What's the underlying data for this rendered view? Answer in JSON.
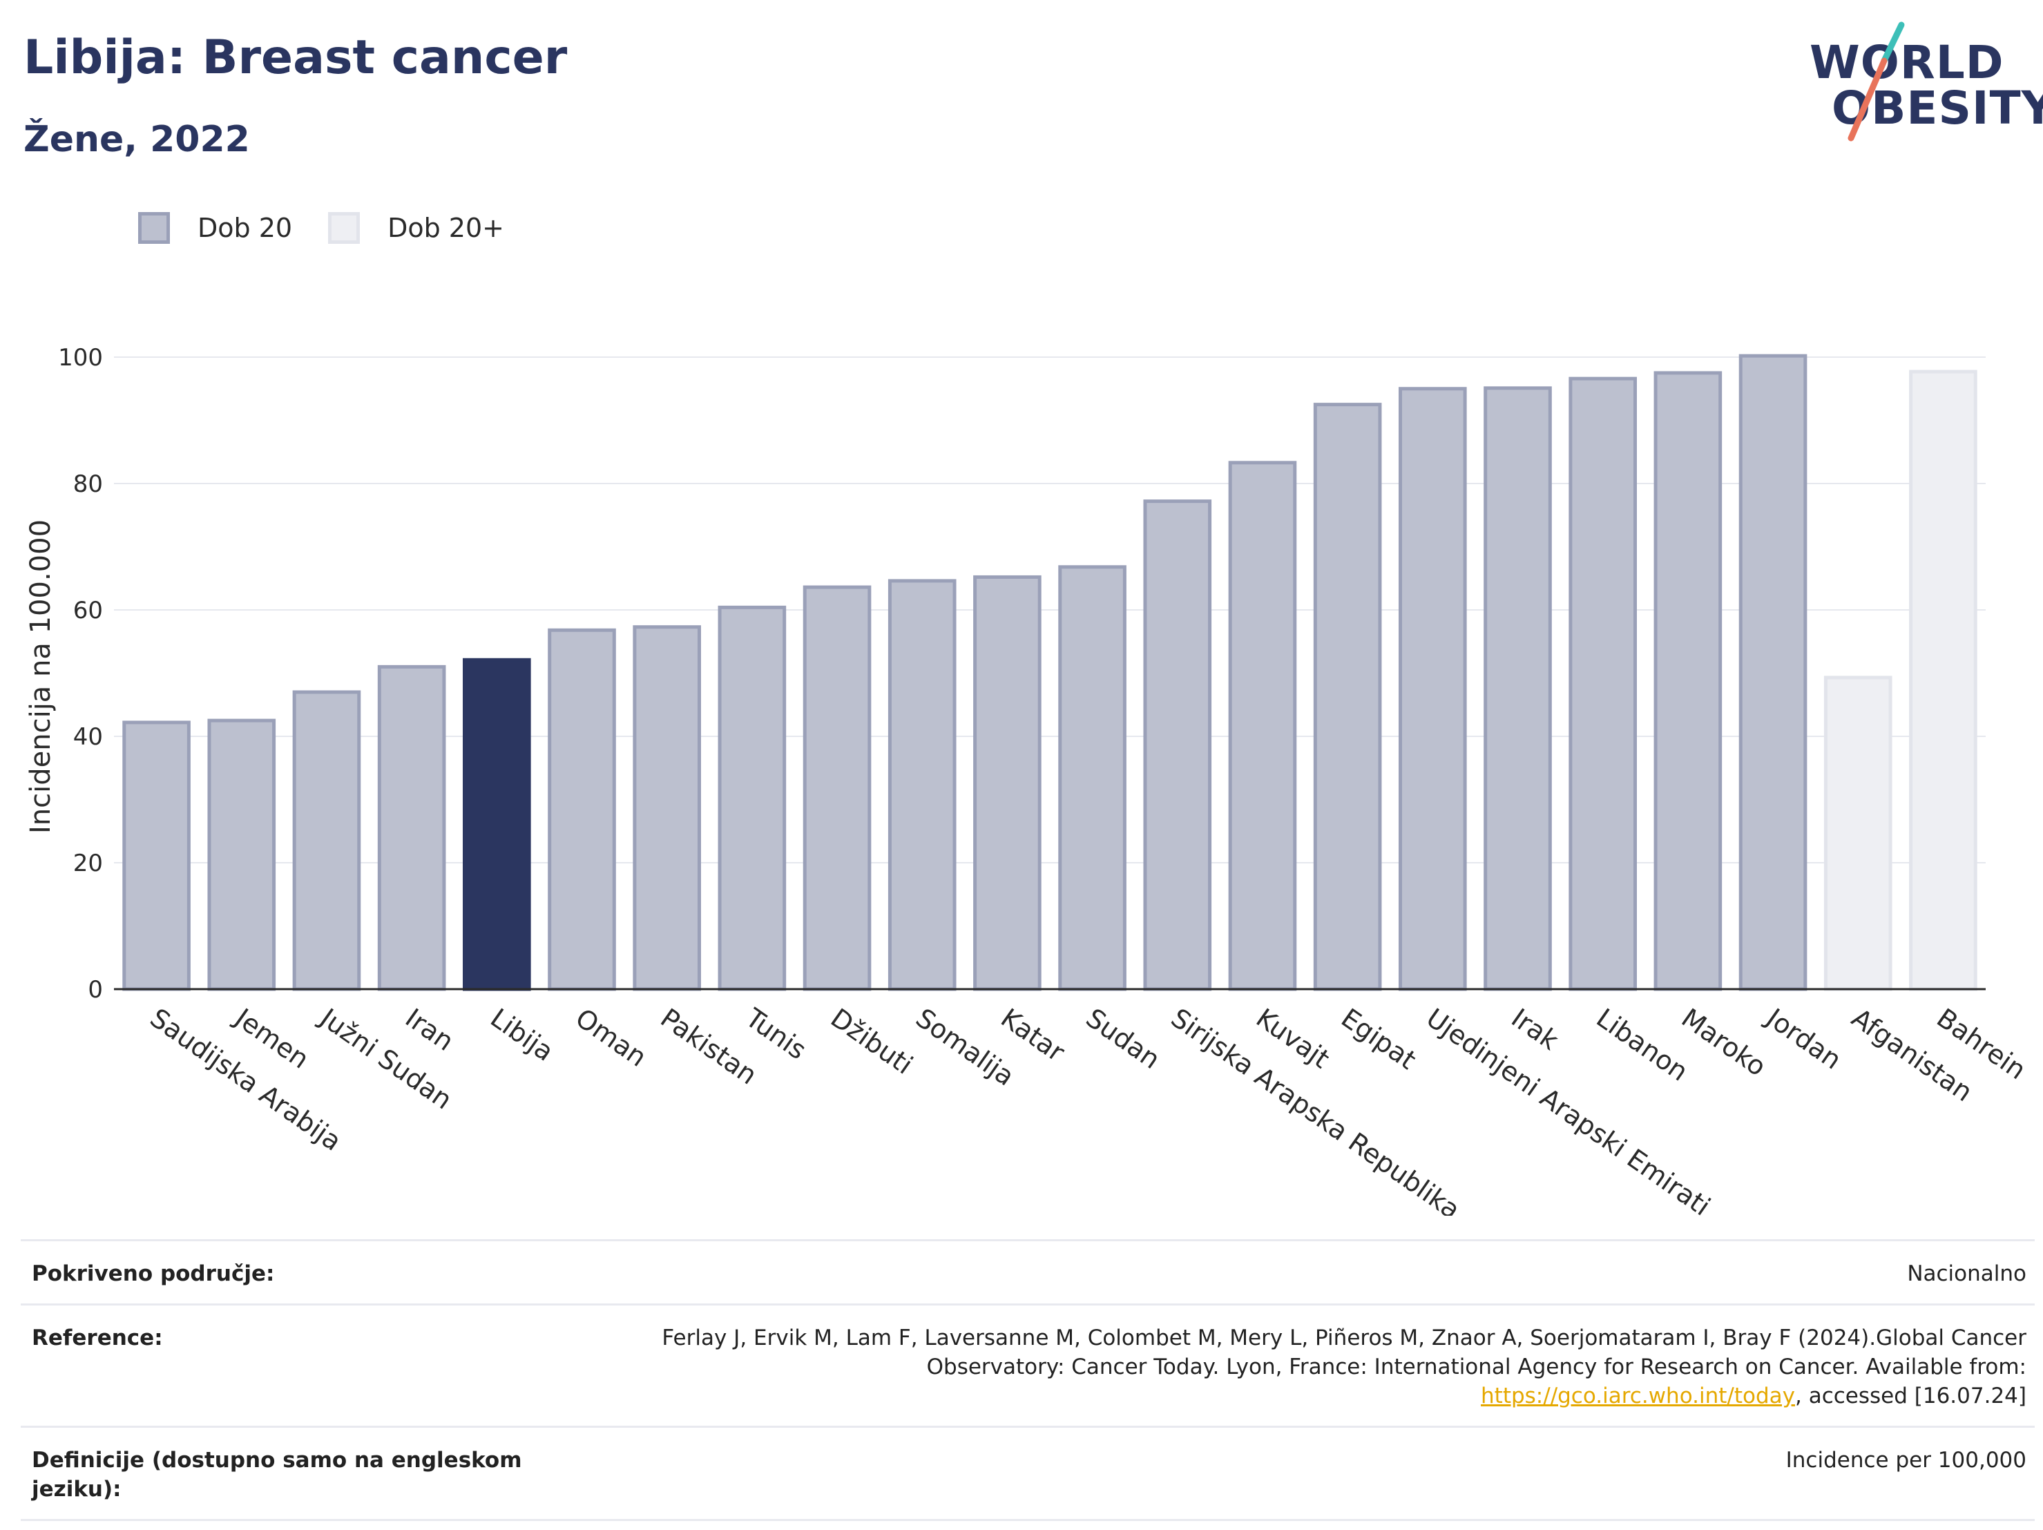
{
  "header": {
    "title": "Libija: Breast cancer",
    "subtitle": "Žene, 2022"
  },
  "logo": {
    "line1": "WORLD",
    "line2": "OBESITY",
    "accent_teal": "#3dbfb8",
    "accent_coral": "#e8735a"
  },
  "legend": [
    {
      "label": "Dob 20",
      "color": "#bcc0cf",
      "border": "#9aa0b8"
    },
    {
      "label": "Dob 20+",
      "color": "#eeeff3",
      "border": "#e2e4eb"
    }
  ],
  "chart_data": {
    "type": "bar",
    "ylabel": "Incidencija na 100.000",
    "ylim": [
      0,
      100
    ],
    "yticks": [
      0,
      20,
      40,
      60,
      80,
      100
    ],
    "grid": true,
    "legend_position": "top-left",
    "highlight_color": "#2b3660",
    "categories": [
      "Saudijska Arabija",
      "Jemen",
      "Južni Sudan",
      "Iran",
      "Libija",
      "Oman",
      "Pakistan",
      "Tunis",
      "Džibuti",
      "Somalija",
      "Katar",
      "Sudan",
      "Sirijska Arapska Republika",
      "Kuvajt",
      "Egipat",
      "Ujedinjeni Arapski Emirati",
      "Irak",
      "Libanon",
      "Maroko",
      "Jordan",
      "Afganistan",
      "Bahrein"
    ],
    "values": [
      42.2,
      42.5,
      47.0,
      51.0,
      52.1,
      56.8,
      57.3,
      60.4,
      63.6,
      64.6,
      65.2,
      66.8,
      77.2,
      83.3,
      92.5,
      95.0,
      95.1,
      96.6,
      97.5,
      100.2,
      49.3,
      97.7
    ],
    "series": [
      "Dob 20",
      "Dob 20",
      "Dob 20",
      "Dob 20",
      "Dob 20",
      "Dob 20",
      "Dob 20",
      "Dob 20",
      "Dob 20",
      "Dob 20",
      "Dob 20",
      "Dob 20",
      "Dob 20",
      "Dob 20",
      "Dob 20",
      "Dob 20",
      "Dob 20",
      "Dob 20",
      "Dob 20",
      "Dob 20",
      "Dob 20+",
      "Dob 20+"
    ],
    "highlight": "Libija"
  },
  "info": {
    "coverage_label": "Pokriveno područje:",
    "coverage_value": "Nacionalno",
    "reference_label": "Reference:",
    "reference_text": "Ferlay J, Ervik M, Lam F, Laversanne M, Colombet M, Mery L, Piñeros M, Znaor A, Soerjomataram I, Bray F (2024).Global Cancer Observatory: Cancer Today. Lyon, France: International Agency for Research on Cancer. Available from: ",
    "reference_link": "https://gco.iarc.who.int/today",
    "reference_tail": ", accessed [16.07.24]",
    "definitions_label": "Definicije (dostupno samo na engleskom jeziku):",
    "definitions_value": "Incidence per 100,000"
  }
}
